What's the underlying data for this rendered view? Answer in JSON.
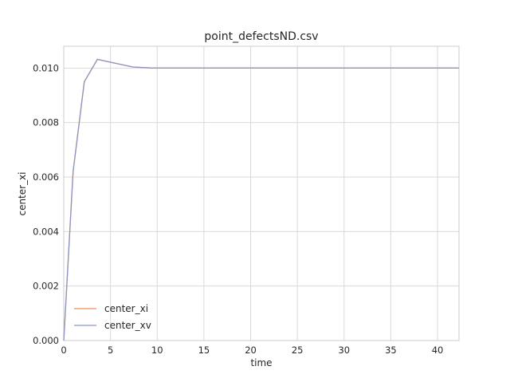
{
  "chart_data": {
    "type": "line",
    "title": "point_defectsND.csv",
    "xlabel": "time",
    "ylabel": "center_xi",
    "xlim": [
      0,
      42.3
    ],
    "ylim": [
      0,
      0.0108
    ],
    "x_ticks": [
      0,
      5,
      10,
      15,
      20,
      25,
      30,
      35,
      40
    ],
    "x_tick_labels": [
      "0",
      "5",
      "10",
      "15",
      "20",
      "25",
      "30",
      "35",
      "40"
    ],
    "y_ticks": [
      0,
      0.002,
      0.004,
      0.006,
      0.008,
      0.01
    ],
    "y_tick_labels": [
      "0.000",
      "0.002",
      "0.004",
      "0.006",
      "0.008",
      "0.010"
    ],
    "grid": true,
    "legend_position": "lower-left",
    "series": [
      {
        "name": "center_xi",
        "color": "#f28e5b",
        "x": [
          0,
          1,
          2.2,
          3.6,
          5.2,
          7.4,
          9.5,
          12,
          15,
          20,
          25,
          30,
          35,
          40,
          42.3
        ],
        "y": [
          0,
          0.0062,
          0.0095,
          0.01032,
          0.0102,
          0.01004,
          0.01,
          0.01,
          0.01,
          0.01,
          0.01,
          0.01,
          0.01,
          0.01,
          0.01
        ]
      },
      {
        "name": "center_xv",
        "color": "#8c96c6",
        "x": [
          0,
          1,
          2.2,
          3.6,
          5.2,
          7.4,
          9.5,
          12,
          15,
          20,
          25,
          30,
          35,
          40,
          42.3
        ],
        "y": [
          0,
          0.0062,
          0.0095,
          0.01032,
          0.0102,
          0.01004,
          0.01,
          0.01,
          0.01,
          0.01,
          0.01,
          0.01,
          0.01,
          0.01,
          0.01
        ]
      }
    ]
  }
}
